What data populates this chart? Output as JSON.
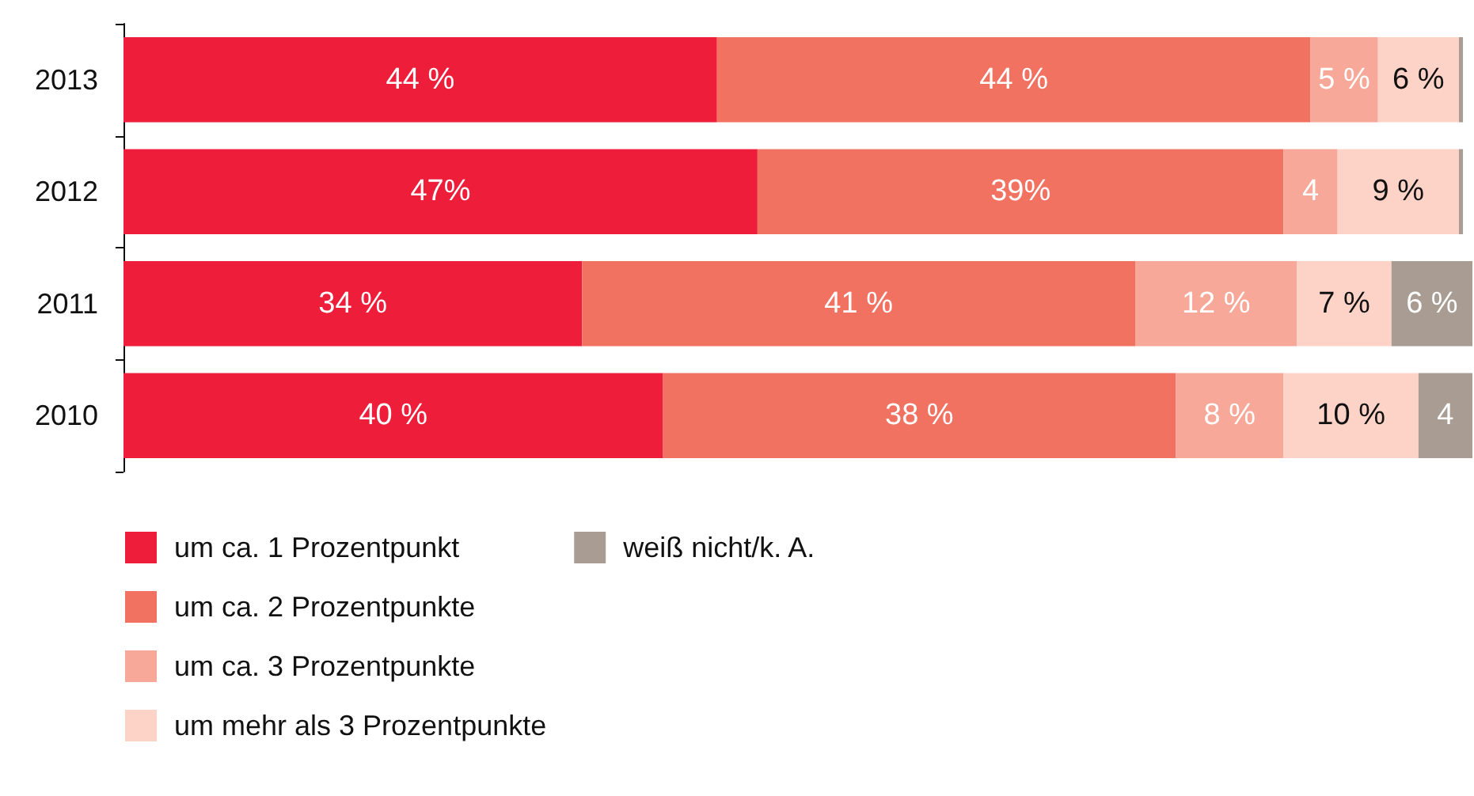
{
  "chart_data": {
    "type": "bar",
    "orientation": "horizontal",
    "stacked": true,
    "legend": "bottom left",
    "categories": [
      "2013",
      "2012",
      "2011",
      "2010"
    ],
    "series": [
      {
        "name": "um ca. 1 Prozentpunkt",
        "color": "#ee1d3a",
        "values": [
          44,
          47,
          34,
          40
        ],
        "value_labels": [
          "44 %",
          "47%",
          "34 %",
          "40 %"
        ]
      },
      {
        "name": "um ca. 2 Prozentpunkte",
        "color": "#f27262",
        "values": [
          44,
          39,
          41,
          38
        ],
        "value_labels": [
          "44 %",
          "39%",
          "41 %",
          "38 %"
        ]
      },
      {
        "name": "um ca. 3 Prozentpunkte",
        "color": "#f8a898",
        "values": [
          5,
          4,
          12,
          8
        ],
        "value_labels": [
          "5 %",
          "4",
          "12 %",
          "8 %"
        ]
      },
      {
        "name": "um mehr als 3 Prozentpunkte",
        "color": "#fdd3c7",
        "values": [
          6,
          9,
          7,
          10
        ],
        "value_labels": [
          "6 %",
          "9 %",
          "7 %",
          "10 %"
        ]
      },
      {
        "name": "weiß nicht/k. A.",
        "color": "#a89c93",
        "values": [
          0.3,
          0.3,
          6,
          4
        ],
        "value_labels": [
          null,
          null,
          "6 %",
          "4"
        ]
      }
    ]
  }
}
